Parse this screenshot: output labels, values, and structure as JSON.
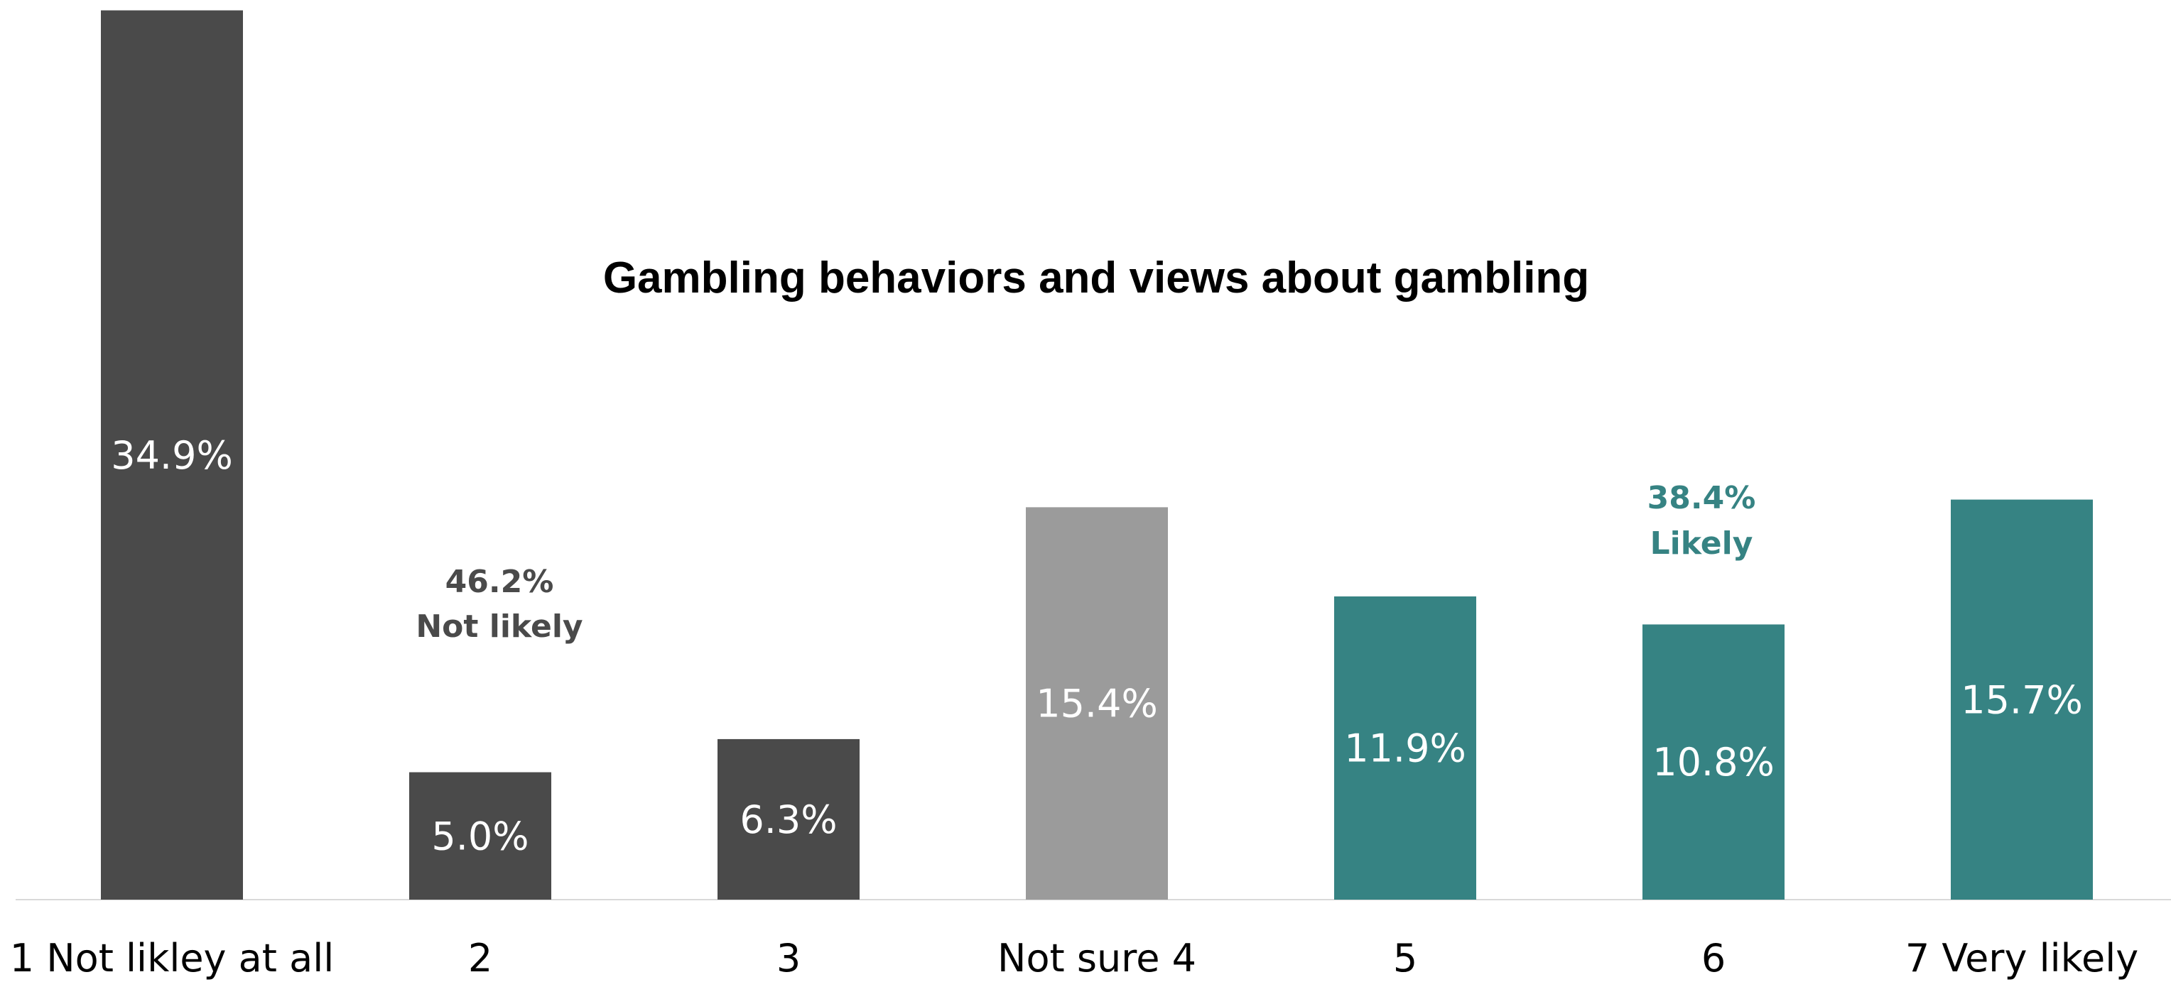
{
  "chart_data": {
    "type": "bar",
    "title": "Gambling behaviors and views about gambling",
    "xlabel": "",
    "ylabel": "",
    "ylim": [
      0,
      35
    ],
    "grid": false,
    "legend": "none",
    "categories": [
      "1 Not likley at all",
      "2",
      "3",
      "Not sure 4",
      "5",
      "6",
      "7 Very likely"
    ],
    "values": [
      34.9,
      5.0,
      6.3,
      15.4,
      11.9,
      10.8,
      15.7
    ],
    "value_labels": [
      "34.9%",
      "5.0%",
      "6.3%",
      "15.4%",
      "11.9%",
      "10.8%",
      "15.7%"
    ],
    "bar_colors": [
      "#4a4a4a",
      "#4a4a4a",
      "#4a4a4a",
      "#9b9b9b",
      "#368383",
      "#368383",
      "#368383"
    ],
    "annotations": [
      {
        "value": "46.2%",
        "text": "Not likely",
        "color": "#4a4a4a"
      },
      {
        "value": "38.4%",
        "text": "Likely",
        "color": "#368383"
      }
    ]
  }
}
